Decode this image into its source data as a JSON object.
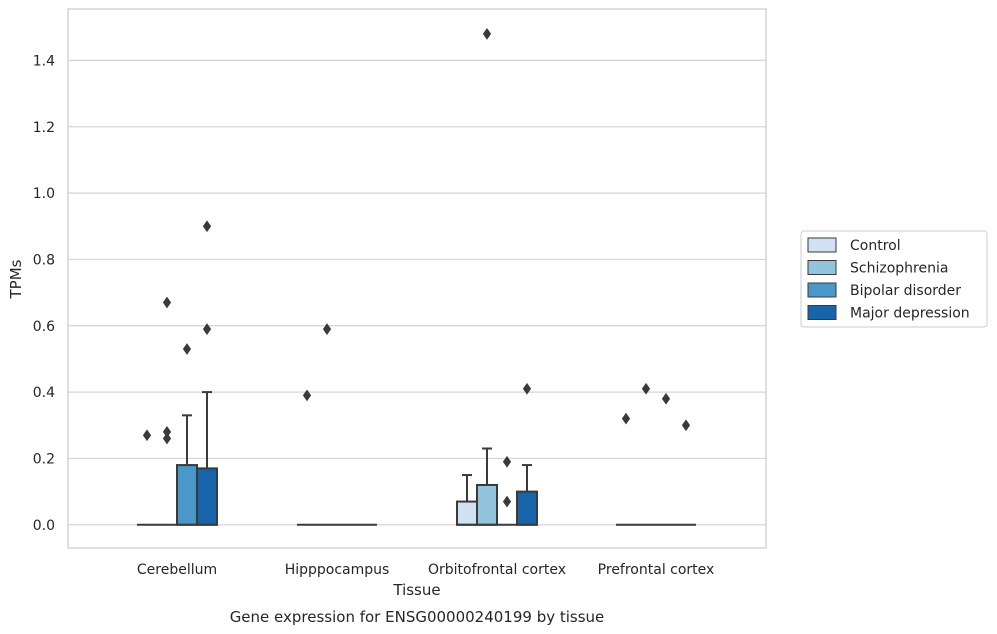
{
  "chart_data": {
    "type": "box",
    "title": "",
    "caption": "Gene expression for ENSG00000240199 by tissue",
    "xlabel": "Tissue",
    "ylabel": "TPMs",
    "ylim": [
      -0.07,
      1.555
    ],
    "yticks": [
      0.0,
      0.2,
      0.4,
      0.6,
      0.8,
      1.0,
      1.2,
      1.4
    ],
    "grid": "horizontal",
    "legend_position": "right",
    "categories": [
      "Cerebellum",
      "Hipppocampus",
      "Orbitofrontal cortex",
      "Prefrontal cortex"
    ],
    "series": [
      {
        "name": "Control",
        "color": "#cfe1f2",
        "boxes": [
          {
            "q1": 0,
            "median": 0,
            "q3": 0,
            "whisker_low": 0,
            "whisker_high": 0,
            "outliers": [
              0.27
            ]
          },
          {
            "q1": 0,
            "median": 0,
            "q3": 0,
            "whisker_low": 0,
            "whisker_high": 0,
            "outliers": [
              0.39
            ]
          },
          {
            "q1": 0,
            "median": 0,
            "q3": 0.07,
            "whisker_low": 0,
            "whisker_high": 0.15,
            "outliers": []
          },
          {
            "q1": 0,
            "median": 0,
            "q3": 0,
            "whisker_low": 0,
            "whisker_high": 0,
            "outliers": [
              0.32
            ]
          }
        ]
      },
      {
        "name": "Schizophrenia",
        "color": "#93c4de",
        "boxes": [
          {
            "q1": 0,
            "median": 0,
            "q3": 0,
            "whisker_low": 0,
            "whisker_high": 0,
            "outliers": [
              0.26,
              0.28,
              0.67
            ]
          },
          {
            "q1": 0,
            "median": 0,
            "q3": 0,
            "whisker_low": 0,
            "whisker_high": 0,
            "outliers": [
              0.59
            ]
          },
          {
            "q1": 0,
            "median": 0,
            "q3": 0.12,
            "whisker_low": 0,
            "whisker_high": 0.23,
            "outliers": [
              1.48
            ]
          },
          {
            "q1": 0,
            "median": 0,
            "q3": 0,
            "whisker_low": 0,
            "whisker_high": 0,
            "outliers": [
              0.41
            ]
          }
        ]
      },
      {
        "name": "Bipolar disorder",
        "color": "#4a98c9",
        "boxes": [
          {
            "q1": 0,
            "median": 0,
            "q3": 0.18,
            "whisker_low": 0,
            "whisker_high": 0.33,
            "outliers": [
              0.53
            ]
          },
          {
            "q1": 0,
            "median": 0,
            "q3": 0,
            "whisker_low": 0,
            "whisker_high": 0,
            "outliers": []
          },
          {
            "q1": 0,
            "median": 0,
            "q3": 0,
            "whisker_low": 0,
            "whisker_high": 0,
            "outliers": [
              0.07,
              0.19
            ]
          },
          {
            "q1": 0,
            "median": 0,
            "q3": 0,
            "whisker_low": 0,
            "whisker_high": 0,
            "outliers": [
              0.38
            ]
          }
        ]
      },
      {
        "name": "Major depression",
        "color": "#1764ab",
        "boxes": [
          {
            "q1": 0,
            "median": 0,
            "q3": 0.17,
            "whisker_low": 0,
            "whisker_high": 0.4,
            "outliers": [
              0.59,
              0.9
            ]
          },
          {
            "q1": 0,
            "median": 0,
            "q3": 0,
            "whisker_low": 0,
            "whisker_high": 0,
            "outliers": []
          },
          {
            "q1": 0,
            "median": 0,
            "q3": 0.1,
            "whisker_low": 0,
            "whisker_high": 0.18,
            "outliers": [
              0.41
            ]
          },
          {
            "q1": 0,
            "median": 0,
            "q3": 0,
            "whisker_low": 0,
            "whisker_high": 0,
            "outliers": [
              0.3
            ]
          }
        ]
      }
    ]
  }
}
